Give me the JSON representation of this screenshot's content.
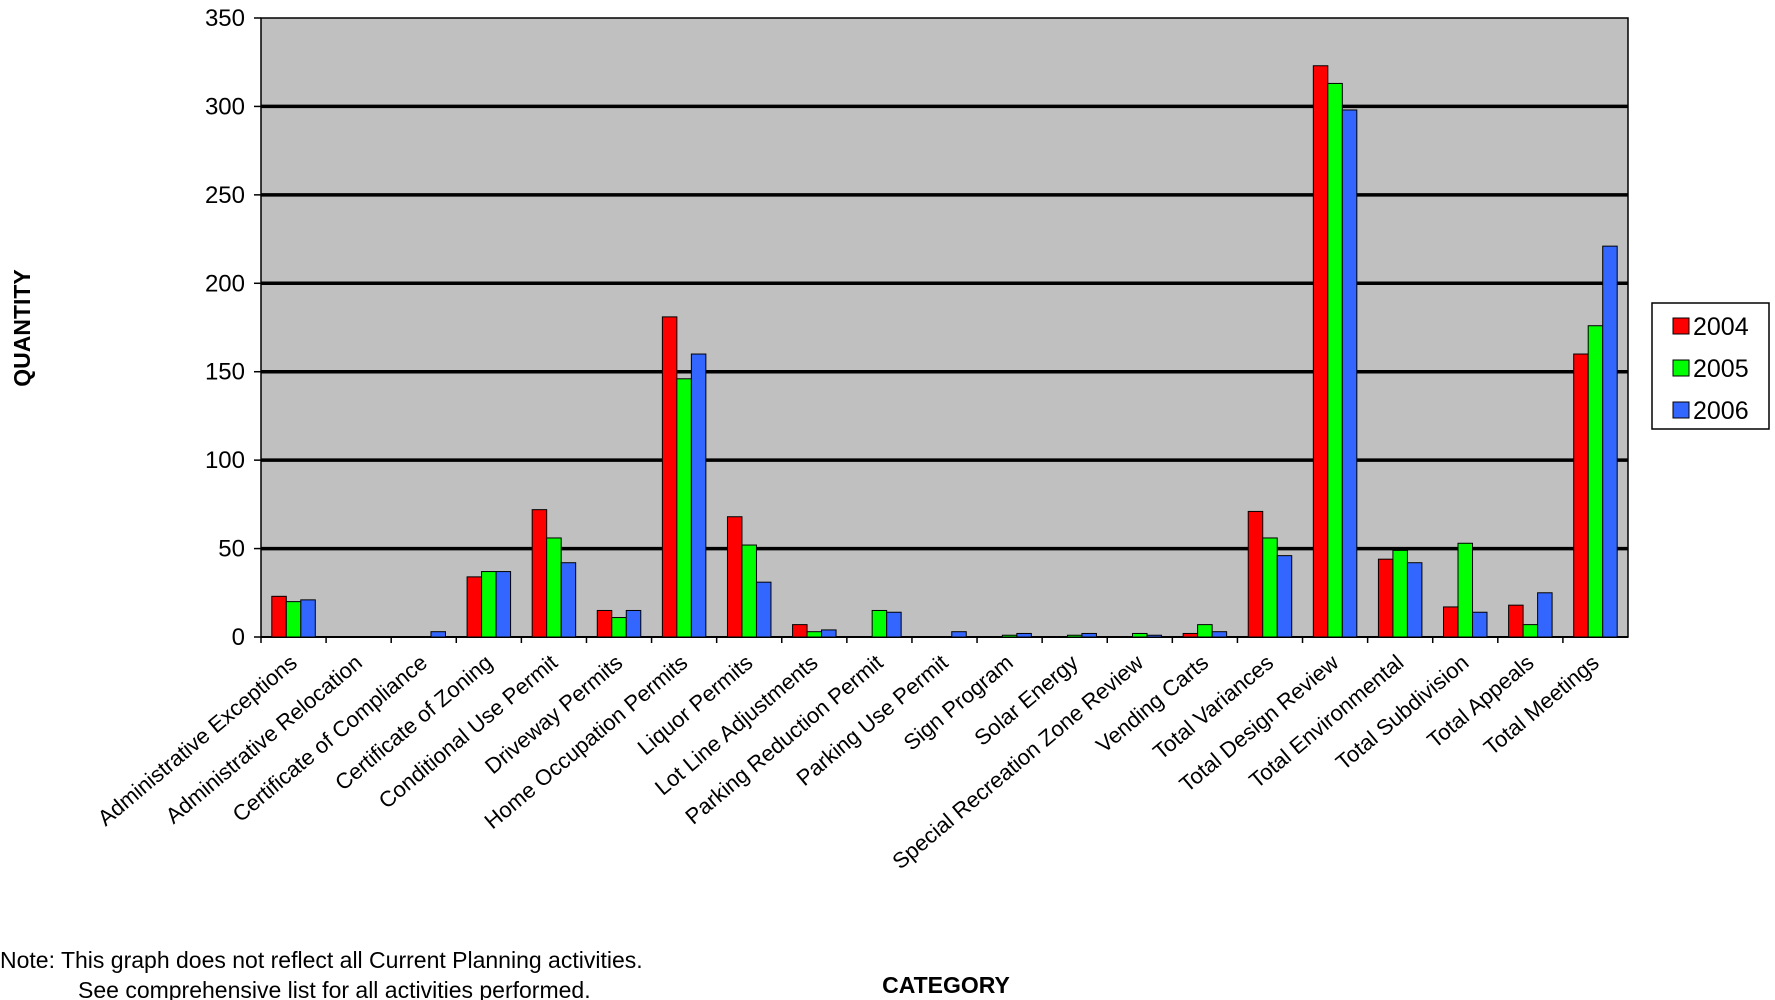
{
  "chart_data": {
    "type": "bar",
    "title": "",
    "xlabel": "CATEGORY",
    "ylabel": "QUANTITY",
    "ylim": [
      0,
      350
    ],
    "yticks": [
      0,
      50,
      100,
      150,
      200,
      250,
      300,
      350
    ],
    "grid": true,
    "legend_position": "right",
    "plot_background": "#c0c0c0",
    "categories": [
      "Administrative Exceptions",
      "Administrative Relocation",
      "Certificate of Compliance",
      "Certificate of Zoning",
      "Conditional Use Permit",
      "Driveway Permits",
      "Home Occupation Permits",
      "Liquor Permits",
      "Lot Line Adjustments",
      "Parking Reduction Permit",
      "Parking Use Permit",
      "Sign Program",
      "Solar Energy",
      "Special Recreation Zone Review",
      "Vending Carts",
      "Total Variances",
      "Total Design Review",
      "Total Environmental",
      "Total Subdivision",
      "Total Appeals",
      "Total Meetings"
    ],
    "series": [
      {
        "name": "2004",
        "color": "#ff0000",
        "values": [
          23,
          0,
          0,
          34,
          72,
          15,
          181,
          68,
          7,
          0,
          0,
          0,
          0,
          0,
          2,
          71,
          323,
          44,
          17,
          18,
          160
        ]
      },
      {
        "name": "2005",
        "color": "#00ff00",
        "values": [
          20,
          0,
          0,
          37,
          56,
          11,
          146,
          52,
          3,
          15,
          0,
          1,
          1,
          2,
          7,
          56,
          313,
          49,
          53,
          7,
          176
        ]
      },
      {
        "name": "2006",
        "color": "#3366ff",
        "values": [
          21,
          0,
          3,
          37,
          42,
          15,
          160,
          31,
          4,
          14,
          3,
          2,
          2,
          1,
          3,
          46,
          298,
          42,
          14,
          25,
          221
        ]
      }
    ]
  },
  "note": {
    "line1": "Note: This graph does not reflect all Current Planning activities.",
    "line2": "See comprehensive list for all activities performed."
  }
}
